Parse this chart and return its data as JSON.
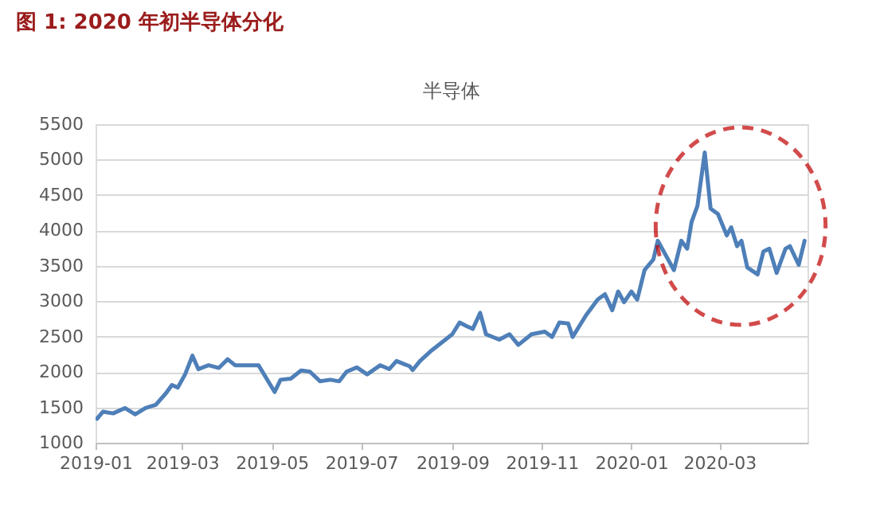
{
  "chart_data": {
    "type": "line",
    "title": "图 1: 2020 年初半导体分化",
    "subtitle": "半导体",
    "xlim": [
      "2019-01-01",
      "2020-04-30"
    ],
    "xticks": [
      {
        "value": "2019-01-01",
        "label": "2019-01"
      },
      {
        "value": "2019-03-01",
        "label": "2019-03"
      },
      {
        "value": "2019-05-01",
        "label": "2019-05"
      },
      {
        "value": "2019-07-01",
        "label": "2019-07"
      },
      {
        "value": "2019-09-01",
        "label": "2019-09"
      },
      {
        "value": "2019-11-01",
        "label": "2019-11"
      },
      {
        "value": "2020-01-01",
        "label": "2020-01"
      },
      {
        "value": "2020-03-01",
        "label": "2020-03"
      }
    ],
    "ylim": [
      1000,
      5500
    ],
    "yticks": [
      1000,
      1500,
      2000,
      2500,
      3000,
      3500,
      4000,
      4500,
      5000,
      5500
    ],
    "grid": "y",
    "marker": "none",
    "line_style": "solid",
    "x": [
      "2019-01-02",
      "2019-01-06",
      "2019-01-13",
      "2019-01-21",
      "2019-01-28",
      "2019-02-04",
      "2019-02-11",
      "2019-02-18",
      "2019-02-22",
      "2019-02-26",
      "2019-03-03",
      "2019-03-08",
      "2019-03-12",
      "2019-03-19",
      "2019-03-26",
      "2019-04-01",
      "2019-04-06",
      "2019-04-12",
      "2019-04-22",
      "2019-05-03",
      "2019-05-07",
      "2019-05-14",
      "2019-05-21",
      "2019-05-27",
      "2019-06-03",
      "2019-06-10",
      "2019-06-16",
      "2019-06-21",
      "2019-06-28",
      "2019-07-05",
      "2019-07-14",
      "2019-07-20",
      "2019-07-25",
      "2019-08-03",
      "2019-08-05",
      "2019-08-10",
      "2019-08-18",
      "2019-09-01",
      "2019-09-06",
      "2019-09-11",
      "2019-09-15",
      "2019-09-20",
      "2019-09-24",
      "2019-10-03",
      "2019-10-10",
      "2019-10-16",
      "2019-10-25",
      "2019-11-03",
      "2019-11-08",
      "2019-11-13",
      "2019-11-19",
      "2019-11-22",
      "2019-12-01",
      "2019-12-09",
      "2019-12-14",
      "2019-12-19",
      "2019-12-23",
      "2019-12-27",
      "2020-01-01",
      "2020-01-05",
      "2020-01-10",
      "2020-01-16",
      "2020-01-19",
      "2020-01-30",
      "2020-02-04",
      "2020-02-08",
      "2020-02-11",
      "2020-02-15",
      "2020-02-20",
      "2020-02-24",
      "2020-02-29",
      "2020-03-06",
      "2020-03-09",
      "2020-03-13",
      "2020-03-16",
      "2020-03-20",
      "2020-03-27",
      "2020-03-31",
      "2020-04-04",
      "2020-04-09",
      "2020-04-15",
      "2020-04-18",
      "2020-04-24",
      "2020-04-28"
    ],
    "series": [
      {
        "color": "#4e7fb8",
        "values": [
          1340,
          1438,
          1415,
          1490,
          1400,
          1490,
          1536,
          1700,
          1815,
          1780,
          1966,
          2230,
          2040,
          2095,
          2057,
          2180,
          2095,
          2095,
          2095,
          1717,
          1890,
          1906,
          2020,
          2004,
          1868,
          1890,
          1868,
          2004,
          2064,
          1966,
          2095,
          2040,
          2155,
          2080,
          2027,
          2155,
          2306,
          2533,
          2699,
          2646,
          2608,
          2835,
          2533,
          2457,
          2533,
          2382,
          2533,
          2570,
          2495,
          2699,
          2684,
          2495,
          2797,
          3023,
          3099,
          2872,
          3137,
          2986,
          3137,
          3023,
          3439,
          3590,
          3854,
          3439,
          3854,
          3741,
          4118,
          4345,
          5100,
          4307,
          4231,
          3929,
          4043,
          3778,
          3854,
          3476,
          3378,
          3703,
          3741,
          3400,
          3741,
          3778,
          3514,
          3854
        ]
      }
    ]
  }
}
